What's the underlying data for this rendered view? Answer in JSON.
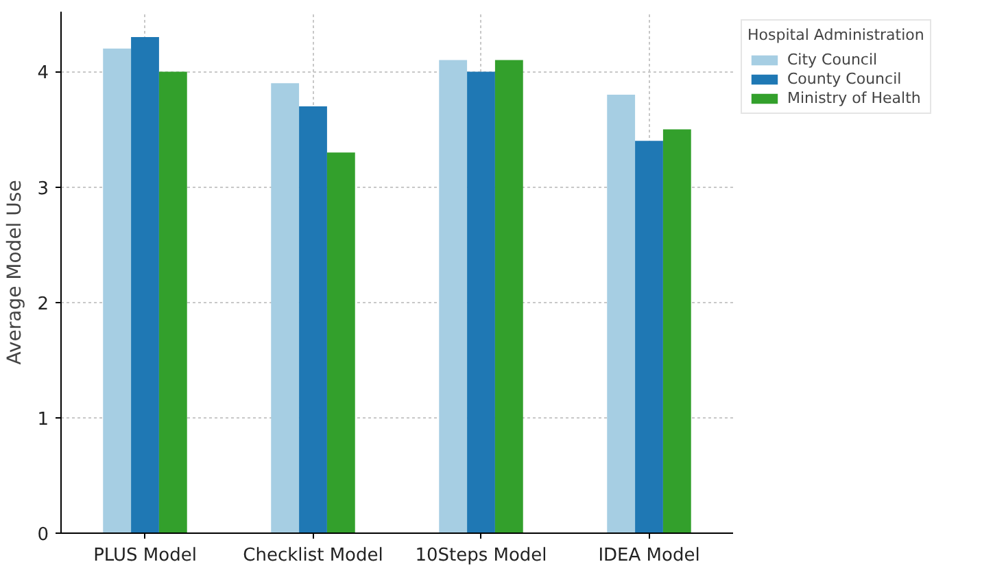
{
  "chart_data": {
    "type": "bar",
    "ylabel": "Average Model Use",
    "legend_title": "Hospital Administration",
    "categories": [
      "PLUS Model",
      "Checklist Model",
      "10Steps Model",
      "IDEA Model"
    ],
    "series": [
      {
        "name": "City Council",
        "color": "#a6cee3",
        "values": [
          4.2,
          3.9,
          4.1,
          3.8
        ]
      },
      {
        "name": "County Council",
        "color": "#1f78b4",
        "values": [
          4.3,
          3.7,
          4.0,
          3.4
        ]
      },
      {
        "name": "Ministry of Health",
        "color": "#33a02c",
        "values": [
          4.0,
          3.3,
          4.1,
          3.5
        ]
      }
    ],
    "ylim": [
      0,
      4.52
    ],
    "yticks": [
      0,
      1,
      2,
      3,
      4
    ],
    "grid": true,
    "legend": "top right"
  }
}
